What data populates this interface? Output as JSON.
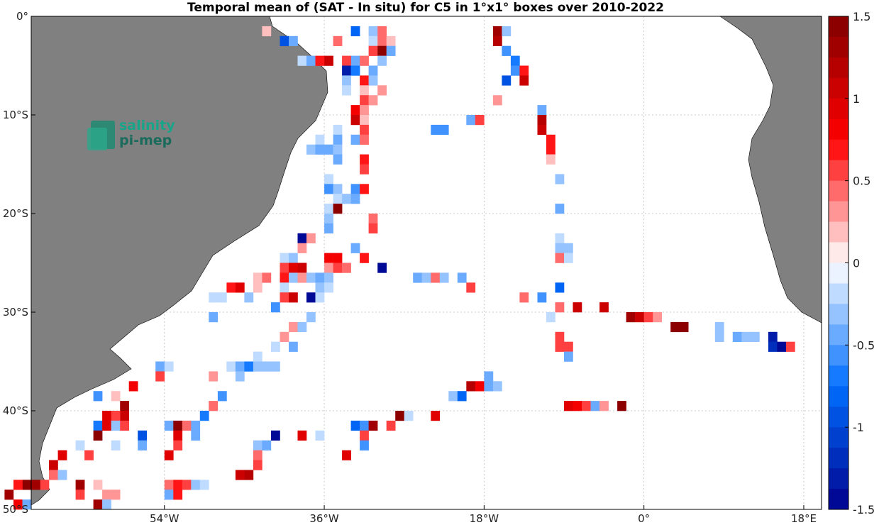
{
  "chart_data": {
    "type": "heatmap",
    "title": "Temporal mean of (SAT - In situ) for C5 in 1°x1° boxes over 2010-2022",
    "x_ticks": [
      "54°W",
      "36°W",
      "18°W",
      "0°",
      "18°E"
    ],
    "y_ticks": [
      "0°",
      "10°S",
      "20°S",
      "30°S",
      "40°S",
      "50°S"
    ],
    "xlim": [
      -69,
      20
    ],
    "ylim": [
      -50,
      0
    ],
    "colorbar": {
      "range": [
        -1.5,
        1.5
      ],
      "ticks": [
        "1.5",
        "1",
        "0.5",
        "0",
        "-0.5",
        "-1",
        "-1.5"
      ],
      "colormap": "blue-white-red"
    },
    "grid": true,
    "logo": {
      "line1": "salinity",
      "line2": "pi-mep"
    },
    "cells": [
      [
        -43,
        -1,
        0.2
      ],
      [
        -33,
        -1,
        -0.8
      ],
      [
        -31,
        -1,
        -0.3
      ],
      [
        -30,
        -1,
        0.4
      ],
      [
        -17,
        -1,
        1.3
      ],
      [
        -16,
        -1,
        -0.3
      ],
      [
        -41,
        -2,
        -1.0
      ],
      [
        -40,
        -2,
        -0.4
      ],
      [
        -35,
        -2,
        0.4
      ],
      [
        -31,
        -2,
        -0.2
      ],
      [
        -30,
        -2,
        0.4
      ],
      [
        -29,
        -2,
        0.2
      ],
      [
        -17,
        -2,
        1.2
      ],
      [
        -31,
        -3,
        0.5
      ],
      [
        -30,
        -3,
        1.5
      ],
      [
        -29,
        -3,
        -0.4
      ],
      [
        -16,
        -3,
        -0.6
      ],
      [
        -39,
        -4,
        -0.2
      ],
      [
        -33,
        -4,
        -0.4
      ],
      [
        -32,
        -4,
        0.4
      ],
      [
        -30,
        -4,
        -0.3
      ],
      [
        -38,
        -4,
        -0.5
      ],
      [
        -37,
        -4,
        0.7
      ],
      [
        -36,
        -4,
        1.0
      ],
      [
        -34,
        -4,
        0.6
      ],
      [
        -15,
        -4,
        -0.7
      ],
      [
        -34,
        -5,
        -1.3
      ],
      [
        -33,
        -5,
        -0.7
      ],
      [
        -31,
        -5,
        -0.4
      ],
      [
        -15,
        -5,
        -0.6
      ],
      [
        -14,
        -5,
        0.7
      ],
      [
        -34,
        -6,
        -0.3
      ],
      [
        -32,
        -6,
        0.7
      ],
      [
        -31,
        -6,
        -0.3
      ],
      [
        -16,
        -6,
        -0.9
      ],
      [
        -14,
        -6,
        1.0
      ],
      [
        -34,
        -7,
        -0.2
      ],
      [
        -32,
        -7,
        0.2
      ],
      [
        -30,
        -7,
        0.3
      ],
      [
        -32,
        -8,
        0.5
      ],
      [
        -31,
        -8,
        0.3
      ],
      [
        -17,
        -8,
        0.3
      ],
      [
        -33,
        -9,
        0.8
      ],
      [
        -32,
        -9,
        0.3
      ],
      [
        -12,
        -9,
        -0.5
      ],
      [
        -33,
        -10,
        1.0
      ],
      [
        -32,
        -10,
        0.2
      ],
      [
        -20,
        -10,
        -0.5
      ],
      [
        -19,
        -10,
        0.6
      ],
      [
        -12,
        -10,
        1.2
      ],
      [
        -35,
        -11,
        -0.2
      ],
      [
        -32,
        -11,
        0.6
      ],
      [
        -24,
        -11,
        -0.6
      ],
      [
        -23,
        -11,
        -0.6
      ],
      [
        -12,
        -11,
        1.0
      ],
      [
        -37,
        -12,
        -0.2
      ],
      [
        -35,
        -12,
        -0.4
      ],
      [
        -33,
        -12,
        -0.5
      ],
      [
        -32,
        -12,
        0.4
      ],
      [
        -11,
        -12,
        0.7
      ],
      [
        -38,
        -13,
        -0.3
      ],
      [
        -37,
        -13,
        -0.5
      ],
      [
        -36,
        -13,
        -0.4
      ],
      [
        -35,
        -13,
        -0.3
      ],
      [
        -11,
        -13,
        0.7
      ],
      [
        -35,
        -14,
        -0.4
      ],
      [
        -32,
        -14,
        0.7
      ],
      [
        -11,
        -14,
        0.2
      ],
      [
        -32,
        -15,
        0.6
      ],
      [
        -36,
        -16,
        -0.2
      ],
      [
        -10,
        -16,
        -0.3
      ],
      [
        -36,
        -17,
        -0.6
      ],
      [
        -35,
        -17,
        -0.3
      ],
      [
        -33,
        -17,
        -0.6
      ],
      [
        -32,
        -17,
        0.7
      ],
      [
        -35,
        -18,
        -0.2
      ],
      [
        -34,
        -18,
        -0.3
      ],
      [
        -33,
        -18,
        -0.4
      ],
      [
        -36,
        -19,
        -0.2
      ],
      [
        -35,
        -19,
        1.5
      ],
      [
        -10,
        -19,
        -0.5
      ],
      [
        -36,
        -20,
        -0.3
      ],
      [
        -31,
        -20,
        0.4
      ],
      [
        -36,
        -21,
        -0.5
      ],
      [
        -31,
        -21,
        0.5
      ],
      [
        -39,
        -22,
        -1.5
      ],
      [
        -38,
        -22,
        0.3
      ],
      [
        -10,
        -22,
        -0.2
      ],
      [
        -39,
        -23,
        0.3
      ],
      [
        -33,
        -23,
        -0.4
      ],
      [
        -10,
        -23,
        -0.3
      ],
      [
        -9,
        -23,
        -0.3
      ],
      [
        -41,
        -24,
        -0.2
      ],
      [
        -40,
        -24,
        -0.3
      ],
      [
        -36,
        -24,
        0.8
      ],
      [
        -35,
        -24,
        0.8
      ],
      [
        -32,
        -24,
        0.7
      ],
      [
        -10,
        -24,
        0.4
      ],
      [
        -9,
        -24,
        -0.2
      ],
      [
        -41,
        -25,
        0.6
      ],
      [
        -40,
        -25,
        0.9
      ],
      [
        -39,
        -25,
        1.0
      ],
      [
        -36,
        -25,
        0.3
      ],
      [
        -35,
        -25,
        0.6
      ],
      [
        -34,
        -25,
        0.4
      ],
      [
        -30,
        -25,
        -1.5
      ],
      [
        -44,
        -26,
        0.2
      ],
      [
        -43,
        -26,
        0.4
      ],
      [
        -41,
        -26,
        0.7
      ],
      [
        -40,
        -26,
        -0.3
      ],
      [
        -39,
        -26,
        0.3
      ],
      [
        -38,
        -26,
        -0.3
      ],
      [
        -37,
        -26,
        -0.5
      ],
      [
        -36,
        -26,
        -0.3
      ],
      [
        -26,
        -26,
        -0.4
      ],
      [
        -25,
        -26,
        -0.3
      ],
      [
        -24,
        -26,
        0.4
      ],
      [
        -23,
        -26,
        -0.3
      ],
      [
        -21,
        -26,
        -0.4
      ],
      [
        -47,
        -27,
        0.7
      ],
      [
        -46,
        -27,
        0.9
      ],
      [
        -44,
        -27,
        0.2
      ],
      [
        -41,
        -27,
        -0.2
      ],
      [
        -37,
        -27,
        -0.3
      ],
      [
        -36,
        -27,
        -0.2
      ],
      [
        -20,
        -27,
        0.6
      ],
      [
        -10,
        -27,
        -0.8
      ],
      [
        -49,
        -28,
        -0.2
      ],
      [
        -48,
        -28,
        -0.2
      ],
      [
        -45,
        -28,
        -0.3
      ],
      [
        -41,
        -28,
        0.6
      ],
      [
        -40,
        -28,
        1.0
      ],
      [
        -38,
        -28,
        -1.5
      ],
      [
        -37,
        -28,
        -0.2
      ],
      [
        -14,
        -28,
        0.4
      ],
      [
        -12,
        -28,
        -0.6
      ],
      [
        -42,
        -29,
        -0.6
      ],
      [
        -10,
        -29,
        0.4
      ],
      [
        -8,
        -29,
        1.0
      ],
      [
        -5,
        -29,
        1.0
      ],
      [
        -38,
        -30,
        -0.3
      ],
      [
        -49,
        -30,
        -0.4
      ],
      [
        -11,
        -30,
        -0.2
      ],
      [
        -2,
        -30,
        1.3
      ],
      [
        -1,
        -30,
        1.0
      ],
      [
        0,
        -30,
        0.5
      ],
      [
        1,
        -30,
        0.3
      ],
      [
        -40,
        -31,
        0.3
      ],
      [
        -39,
        -31,
        -0.3
      ],
      [
        3,
        -31,
        1.5
      ],
      [
        4,
        -31,
        1.5
      ],
      [
        8,
        -31,
        -0.3
      ],
      [
        -41,
        -32,
        0.3
      ],
      [
        -10,
        -32,
        0.5
      ],
      [
        8,
        -32,
        -0.3
      ],
      [
        10,
        -32,
        -0.4
      ],
      [
        11,
        -32,
        -0.3
      ],
      [
        12,
        -32,
        -0.3
      ],
      [
        14,
        -32,
        -1.3
      ],
      [
        -42,
        -33,
        -0.2
      ],
      [
        -40,
        -33,
        -0.4
      ],
      [
        -10,
        -33,
        0.6
      ],
      [
        -9,
        -33,
        0.5
      ],
      [
        14,
        -33,
        -1.2
      ],
      [
        15,
        -33,
        -1.5
      ],
      [
        16,
        -33,
        0.6
      ],
      [
        -44,
        -34,
        -0.2
      ],
      [
        -9,
        -34,
        -0.4
      ],
      [
        -47,
        -35,
        -0.2
      ],
      [
        -43,
        -35,
        -0.3
      ],
      [
        -42,
        -35,
        -0.3
      ],
      [
        -55,
        -35,
        -0.4
      ],
      [
        -54,
        -35,
        -0.2
      ],
      [
        -47,
        -35,
        -0.2
      ],
      [
        -46,
        -35,
        -0.5
      ],
      [
        -45,
        -35,
        -0.7
      ],
      [
        -44,
        -35,
        -0.3
      ],
      [
        -55,
        -36,
        0.5
      ],
      [
        -49,
        -36,
        0.3
      ],
      [
        -46,
        -36,
        -0.3
      ],
      [
        -18,
        -36,
        -0.5
      ],
      [
        -58,
        -37,
        0.8
      ],
      [
        -20,
        -37,
        1.2
      ],
      [
        -19,
        -37,
        0.8
      ],
      [
        -18,
        -37,
        -0.4
      ],
      [
        -17,
        -37,
        -0.3
      ],
      [
        -62,
        -38,
        -0.6
      ],
      [
        -60,
        -38,
        0.2
      ],
      [
        -48,
        -38,
        -0.6
      ],
      [
        -22,
        -38,
        -0.3
      ],
      [
        -21,
        -38,
        -0.8
      ],
      [
        -59,
        -39,
        1.3
      ],
      [
        -49,
        -39,
        0.4
      ],
      [
        -9,
        -39,
        0.9
      ],
      [
        -8,
        -39,
        0.8
      ],
      [
        -7,
        -39,
        0.5
      ],
      [
        -6,
        -39,
        -0.4
      ],
      [
        -5,
        -39,
        0.3
      ],
      [
        -3,
        -39,
        1.5
      ],
      [
        -59,
        -40,
        1.0
      ],
      [
        -60,
        -40,
        0.6
      ],
      [
        -61,
        -40,
        0.9
      ],
      [
        -50,
        -40,
        -0.7
      ],
      [
        -28,
        -40,
        1.5
      ],
      [
        -27,
        -40,
        -0.2
      ],
      [
        -24,
        -40,
        0.9
      ],
      [
        -62,
        -41,
        -0.7
      ],
      [
        -61,
        -41,
        0.9
      ],
      [
        -60,
        -41,
        -0.3
      ],
      [
        -59,
        -41,
        0.6
      ],
      [
        -54,
        -41,
        -0.5
      ],
      [
        -53,
        -41,
        1.5
      ],
      [
        -52,
        -41,
        0.4
      ],
      [
        -51,
        -41,
        -0.4
      ],
      [
        -33,
        -41,
        -0.8
      ],
      [
        -32,
        -41,
        -0.6
      ],
      [
        -31,
        -41,
        1.3
      ],
      [
        -29,
        -41,
        0.5
      ],
      [
        -62,
        -42,
        1.5
      ],
      [
        -57,
        -42,
        -1.0
      ],
      [
        -53,
        -42,
        0.9
      ],
      [
        -51,
        -42,
        -0.4
      ],
      [
        -42,
        -42,
        -1.5
      ],
      [
        -39,
        -42,
        0.9
      ],
      [
        -37,
        -42,
        -0.2
      ],
      [
        -32,
        -42,
        0.5
      ],
      [
        -64,
        -43,
        -0.2
      ],
      [
        -60,
        -43,
        -0.2
      ],
      [
        -57,
        -43,
        -0.4
      ],
      [
        -53,
        -43,
        0.6
      ],
      [
        -44,
        -43,
        -0.3
      ],
      [
        -43,
        -43,
        -0.4
      ],
      [
        -32,
        -43,
        -0.6
      ],
      [
        -66,
        -44,
        0.9
      ],
      [
        -63,
        -44,
        0.5
      ],
      [
        -54,
        -44,
        0.9
      ],
      [
        -44,
        -44,
        0.4
      ],
      [
        -34,
        -44,
        0.9
      ],
      [
        -67,
        -45,
        1.0
      ],
      [
        -44,
        -45,
        0.5
      ],
      [
        -67,
        -46,
        0.4
      ],
      [
        -66,
        -46,
        -0.3
      ],
      [
        -45,
        -46,
        1.2
      ],
      [
        -46,
        -46,
        1.0
      ],
      [
        -68,
        -47,
        0.6
      ],
      [
        -69,
        -47,
        1.3
      ],
      [
        -70,
        -47,
        1.4
      ],
      [
        -71,
        -47,
        0.7
      ],
      [
        -64,
        -47,
        1.3
      ],
      [
        -62,
        -47,
        0.2
      ],
      [
        -54,
        -47,
        0.4
      ],
      [
        -53,
        -47,
        0.7
      ],
      [
        -52,
        -47,
        0.5
      ],
      [
        -51,
        -47,
        -0.3
      ],
      [
        -50,
        -47,
        -0.2
      ],
      [
        -72,
        -48,
        1.3
      ],
      [
        -64,
        -48,
        0.6
      ],
      [
        -61,
        -48,
        0.3
      ],
      [
        -60,
        -48,
        0.3
      ],
      [
        -54,
        -48,
        -0.5
      ],
      [
        -53,
        -48,
        0.7
      ],
      [
        -71,
        -49,
        0.8
      ],
      [
        -70,
        -49,
        -0.5
      ],
      [
        -62,
        -49,
        1.3
      ],
      [
        -61,
        -49,
        -0.3
      ]
    ]
  }
}
